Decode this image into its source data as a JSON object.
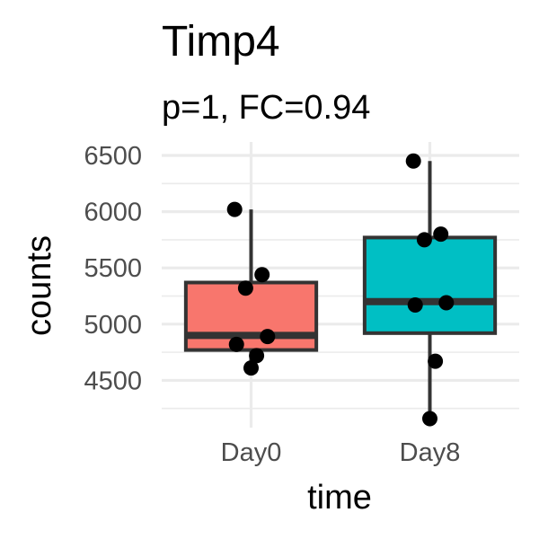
{
  "chart_data": {
    "type": "boxplot",
    "title": "Timp4",
    "subtitle": "p=1, FC=0.94",
    "xlabel": "time",
    "ylabel": "counts",
    "categories": [
      "Day0",
      "Day8"
    ],
    "yticks": [
      4500,
      5000,
      5500,
      6000,
      6500
    ],
    "ylim": [
      4080,
      6620
    ],
    "grid": true,
    "boxes": [
      {
        "category": "Day0",
        "fill": "#F8766D",
        "min": 4610,
        "q1": 4770,
        "median": 4900,
        "q3": 5370,
        "max": 6020,
        "points": [
          6020,
          5440,
          5320,
          4890,
          4820,
          4720,
          4610
        ]
      },
      {
        "category": "Day8",
        "fill": "#00BFC4",
        "min": 4160,
        "q1": 4920,
        "median": 5200,
        "q3": 5770,
        "max": 6450,
        "points": [
          6450,
          5800,
          5750,
          5190,
          5170,
          4670,
          4160
        ]
      }
    ],
    "point_color": "#000000",
    "line_color": "#333333",
    "grid_color": "#ebebeb"
  }
}
